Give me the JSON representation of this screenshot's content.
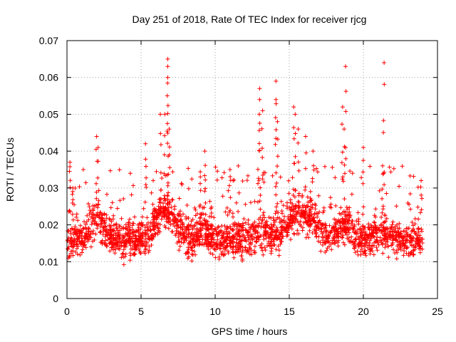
{
  "chart_data": {
    "type": "scatter",
    "title": "Day 251 of 2018, Rate Of TEC Index for receiver rjcg",
    "xlabel": "GPS time / hours",
    "ylabel": "ROTI / TECUs",
    "xlim": [
      0,
      25
    ],
    "ylim": [
      0,
      0.07
    ],
    "xticks": [
      0,
      5,
      10,
      15,
      20,
      25
    ],
    "yticks": [
      0,
      0.01,
      0.02,
      0.03,
      0.04,
      0.05,
      0.06,
      0.07
    ],
    "ytick_labels": [
      "0",
      "0.01",
      "0.02",
      "0.03",
      "0.04",
      "0.05",
      "0.06",
      "0.07"
    ],
    "grid": true,
    "marker": "+",
    "color": "#ff0000",
    "series": [
      {
        "name": "ROTI",
        "sampling": "dense cloud, ~2000 epochs over 0-24 h; baseline band approx 0.007-0.025 TECU/s",
        "peaks": [
          {
            "x": 0.2,
            "y": 0.037
          },
          {
            "x": 0.4,
            "y": 0.03
          },
          {
            "x": 2.0,
            "y": 0.044
          },
          {
            "x": 2.1,
            "y": 0.041
          },
          {
            "x": 5.3,
            "y": 0.042
          },
          {
            "x": 6.3,
            "y": 0.05
          },
          {
            "x": 6.6,
            "y": 0.05
          },
          {
            "x": 6.8,
            "y": 0.065
          },
          {
            "x": 6.8,
            "y": 0.063
          },
          {
            "x": 6.8,
            "y": 0.06
          },
          {
            "x": 6.9,
            "y": 0.046
          },
          {
            "x": 9.0,
            "y": 0.033
          },
          {
            "x": 9.3,
            "y": 0.04
          },
          {
            "x": 11.0,
            "y": 0.035
          },
          {
            "x": 13.0,
            "y": 0.057
          },
          {
            "x": 13.0,
            "y": 0.054
          },
          {
            "x": 13.2,
            "y": 0.051
          },
          {
            "x": 14.1,
            "y": 0.059
          },
          {
            "x": 14.1,
            "y": 0.054
          },
          {
            "x": 14.2,
            "y": 0.048
          },
          {
            "x": 15.3,
            "y": 0.052
          },
          {
            "x": 15.4,
            "y": 0.05
          },
          {
            "x": 15.6,
            "y": 0.046
          },
          {
            "x": 16.1,
            "y": 0.044
          },
          {
            "x": 16.6,
            "y": 0.04
          },
          {
            "x": 18.6,
            "y": 0.052
          },
          {
            "x": 18.8,
            "y": 0.063
          },
          {
            "x": 18.7,
            "y": 0.046
          },
          {
            "x": 20.0,
            "y": 0.041
          },
          {
            "x": 21.4,
            "y": 0.064
          },
          {
            "x": 21.3,
            "y": 0.036
          },
          {
            "x": 23.9,
            "y": 0.032
          }
        ]
      }
    ]
  }
}
